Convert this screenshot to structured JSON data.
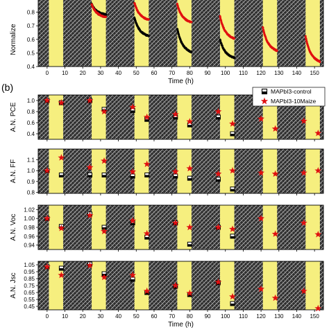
{
  "figure": {
    "panel_b_tag": "(b)",
    "legend": [
      {
        "label": "MAPbI3-control",
        "marker": "half-filled-square",
        "color": "#000000"
      },
      {
        "label": "MAPbI3-10Maize",
        "marker": "star",
        "color": "#e01010"
      }
    ],
    "colors": {
      "light_band": "#f6ef7f",
      "dark_band": "#2b2b2b",
      "control": "#000000",
      "maize": "#e01010"
    }
  },
  "chart_data": [
    {
      "id": "a",
      "type": "line",
      "title": "",
      "ylabel": "Normalize",
      "xlabel": "Time (h)",
      "xlim": [
        -5,
        155
      ],
      "ylim": [
        0.4,
        0.9
      ],
      "xticks": [
        0,
        10,
        20,
        30,
        40,
        50,
        60,
        70,
        80,
        90,
        100,
        110,
        120,
        130,
        140,
        150
      ],
      "yticks": [
        0.4,
        0.5,
        0.6,
        0.7,
        0.8
      ],
      "light_intervals": [
        [
          1,
          9
        ],
        [
          25,
          33
        ],
        [
          49,
          57
        ],
        [
          73,
          81
        ],
        [
          97,
          105
        ],
        [
          121,
          129
        ],
        [
          145,
          153
        ]
      ],
      "series": [
        {
          "name": "MAPbI3-control",
          "segments": [
            {
              "x": [
                25,
                33
              ],
              "y0": 0.86,
              "y1": 0.78
            },
            {
              "x": [
                49,
                57
              ],
              "y0": 0.76,
              "y1": 0.62
            },
            {
              "x": [
                73,
                81
              ],
              "y0": 0.68,
              "y1": 0.5
            },
            {
              "x": [
                97,
                105
              ],
              "y0": 0.6,
              "y1": 0.46
            }
          ]
        },
        {
          "name": "MAPbI3-10Maize",
          "segments": [
            {
              "x": [
                25,
                33
              ],
              "y0": 0.86,
              "y1": 0.76
            },
            {
              "x": [
                49,
                57
              ],
              "y0": 0.87,
              "y1": 0.74
            },
            {
              "x": [
                73,
                81
              ],
              "y0": 0.86,
              "y1": 0.72
            },
            {
              "x": [
                97,
                105
              ],
              "y0": 0.77,
              "y1": 0.6
            },
            {
              "x": [
                121,
                129
              ],
              "y0": 0.69,
              "y1": 0.51
            },
            {
              "x": [
                145,
                153
              ],
              "y0": 0.62,
              "y1": 0.43
            }
          ]
        }
      ]
    },
    {
      "id": "b-pce",
      "type": "scatter",
      "ylabel": "A.N. PCE",
      "xlim": [
        -5,
        155
      ],
      "ylim": [
        0.3,
        1.1
      ],
      "yticks": [
        0.4,
        0.6,
        0.8,
        1.0
      ],
      "ytick_labels": [
        "0.4",
        "0.6",
        "0.8",
        "1.0"
      ],
      "series": [
        {
          "name": "MAPbI3-control",
          "x": [
            0,
            8,
            24,
            32,
            48,
            56,
            72,
            80,
            96,
            104
          ],
          "y": [
            1.0,
            0.96,
            1.0,
            0.84,
            0.82,
            0.66,
            0.7,
            0.56,
            0.7,
            0.4
          ]
        },
        {
          "name": "MAPbI3-10Maize",
          "x": [
            0,
            8,
            24,
            32,
            48,
            56,
            72,
            80,
            96,
            104,
            120,
            128,
            144,
            152
          ],
          "y": [
            1.0,
            0.96,
            1.0,
            0.8,
            0.88,
            0.7,
            0.75,
            0.62,
            0.8,
            0.58,
            0.67,
            0.49,
            0.63,
            0.41
          ]
        }
      ]
    },
    {
      "id": "b-ff",
      "type": "scatter",
      "ylabel": "A.N. FF",
      "xlim": [
        -5,
        155
      ],
      "ylim": [
        0.79,
        1.2
      ],
      "yticks": [
        0.8,
        0.9,
        1.0,
        1.1
      ],
      "ytick_labels": [
        "0.8",
        "0.9",
        "1.0",
        "1.1"
      ],
      "series": [
        {
          "name": "MAPbI3-control",
          "x": [
            0,
            8,
            24,
            32,
            48,
            56,
            72,
            80,
            96,
            104
          ],
          "y": [
            1.0,
            0.96,
            0.96,
            0.96,
            0.95,
            0.96,
            0.95,
            0.93,
            0.92,
            0.83
          ]
        },
        {
          "name": "MAPbI3-10Maize",
          "x": [
            0,
            8,
            24,
            32,
            48,
            56,
            72,
            80,
            96,
            104,
            120,
            128,
            144,
            152
          ],
          "y": [
            1.0,
            1.12,
            1.03,
            1.09,
            0.99,
            1.06,
            0.99,
            1.02,
            0.97,
            1.0,
            0.98,
            0.97,
            0.98,
            1.0
          ]
        }
      ]
    },
    {
      "id": "b-voc",
      "type": "scatter",
      "ylabel": "A.N. Voc",
      "xlim": [
        -5,
        155
      ],
      "ylim": [
        0.93,
        1.03
      ],
      "yticks": [
        0.94,
        0.96,
        0.98,
        1.0,
        1.02
      ],
      "ytick_labels": [
        "0.94",
        "0.96",
        "0.98",
        "1.00",
        "1.02"
      ],
      "series": [
        {
          "name": "MAPbI3-control",
          "x": [
            0,
            8,
            24,
            32,
            48,
            56,
            72,
            80,
            96,
            104
          ],
          "y": [
            1.0,
            0.982,
            1.01,
            0.98,
            0.99,
            0.958,
            0.99,
            0.942,
            0.98,
            0.96
          ]
        },
        {
          "name": "MAPbI3-10Maize",
          "x": [
            0,
            8,
            24,
            32,
            48,
            56,
            72,
            80,
            96,
            104,
            120,
            128,
            144,
            152
          ],
          "y": [
            1.0,
            0.978,
            1.007,
            0.971,
            0.995,
            0.966,
            0.99,
            0.98,
            0.98,
            0.976,
            1.0,
            0.965,
            0.99,
            0.964
          ]
        }
      ]
    },
    {
      "id": "b-jsc",
      "type": "scatter",
      "ylabel": "A.N. Jsc",
      "xlabel": "Time (h)",
      "xlim": [
        -5,
        155
      ],
      "ylim": [
        0.4,
        1.1
      ],
      "xticks": [
        0,
        10,
        20,
        30,
        40,
        50,
        60,
        70,
        80,
        90,
        100,
        110,
        120,
        130,
        140,
        150
      ],
      "yticks": [
        0.45,
        0.55,
        0.65,
        0.75,
        0.85,
        0.95,
        1.05
      ],
      "ytick_labels": [
        "0.45",
        "0.55",
        "0.65",
        "0.75",
        "0.85",
        "0.95",
        "1.05"
      ],
      "series": [
        {
          "name": "MAPbI3-control",
          "x": [
            0,
            8,
            24,
            32,
            48,
            56,
            72,
            80,
            96,
            104
          ],
          "y": [
            1.02,
            1.0,
            1.06,
            0.92,
            0.84,
            0.65,
            0.74,
            0.62,
            0.79,
            0.49
          ]
        },
        {
          "name": "MAPbI3-10Maize",
          "x": [
            0,
            8,
            24,
            32,
            48,
            56,
            72,
            80,
            96,
            104,
            120,
            128,
            144,
            152
          ],
          "y": [
            1.02,
            0.9,
            1.04,
            0.87,
            0.9,
            0.67,
            0.75,
            0.64,
            0.8,
            0.59,
            0.7,
            0.57,
            0.67,
            0.42
          ]
        }
      ]
    }
  ]
}
